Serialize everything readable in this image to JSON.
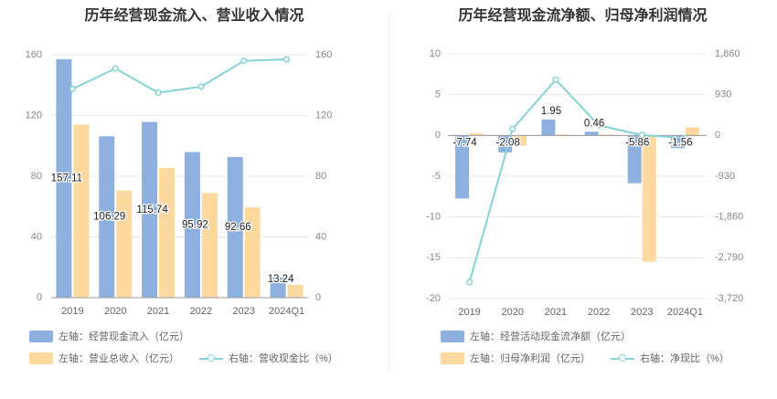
{
  "colors": {
    "blue": "#8eb0de",
    "orange": "#fdd9a0",
    "teal": "#86d3d6",
    "grid": "#e8e8e8",
    "axis": "#9b9b9b"
  },
  "chart_data": [
    {
      "type": "bar",
      "title": "历年经营现金流入、营业收入情况",
      "categories": [
        "2019",
        "2020",
        "2021",
        "2022",
        "2023",
        "2024Q1"
      ],
      "left_axis": {
        "ticks": [
          "0",
          "40",
          "80",
          "120",
          "160"
        ],
        "ylim": [
          0,
          160
        ]
      },
      "right_axis": {
        "ticks": [
          "0",
          "40",
          "80",
          "120",
          "160"
        ],
        "ylim": [
          0,
          160
        ]
      },
      "series": [
        {
          "name": "左轴：经营现金流入（亿元）",
          "axis": "left",
          "kind": "bar",
          "values": [
            157.11,
            106.29,
            115.74,
            95.92,
            92.66,
            13.24
          ],
          "labels": [
            "157.11",
            "106.29",
            "115.74",
            "95.92",
            "92.66",
            "13.24"
          ]
        },
        {
          "name": "左轴：营业总收入（亿元）",
          "axis": "left",
          "kind": "bar",
          "values": [
            114,
            70.5,
            85.5,
            69,
            59.5,
            8.5
          ]
        },
        {
          "name": "右轴：营收现金比（%）",
          "axis": "right",
          "kind": "line",
          "values": [
            137.5,
            151,
            135,
            139,
            156,
            157
          ]
        }
      ]
    },
    {
      "type": "bar",
      "title": "历年经营现金流净额、归母净利润情况",
      "categories": [
        "2019",
        "2020",
        "2021",
        "2022",
        "2023",
        "2024Q1"
      ],
      "left_axis": {
        "ticks": [
          "-20",
          "-15",
          "-10",
          "-5",
          "0",
          "5",
          "10"
        ],
        "ylim": [
          -20,
          10
        ]
      },
      "right_axis": {
        "ticks": [
          "-3,720",
          "-2,790",
          "-1,860",
          "-930",
          "0",
          "930",
          "1,860"
        ],
        "ylim": [
          -3720,
          1860
        ]
      },
      "series": [
        {
          "name": "左轴：经营活动现金流净额（亿元）",
          "axis": "left",
          "kind": "bar",
          "values": [
            -7.74,
            -2.08,
            1.95,
            0.46,
            -5.86,
            -1.56
          ],
          "labels": [
            "-7.74",
            "-2.08",
            "1.95",
            "0.46",
            "-5.86",
            "-1.56"
          ]
        },
        {
          "name": "左轴：归母净利润（亿元）",
          "axis": "left",
          "kind": "bar",
          "values": [
            0.25,
            -1.25,
            0.12,
            0.12,
            -15.5,
            1.0
          ]
        },
        {
          "name": "右轴：净现比（%）",
          "axis": "right",
          "kind": "line",
          "values": [
            -3350,
            150,
            1270,
            230,
            10,
            -60
          ]
        }
      ]
    }
  ]
}
